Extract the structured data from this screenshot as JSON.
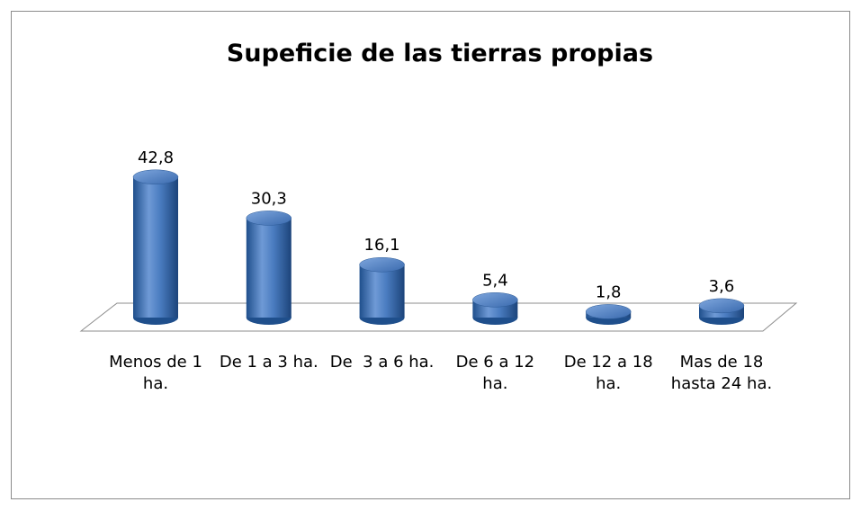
{
  "chart_data": {
    "type": "bar3d",
    "title": "Supeficie de las tierras propias",
    "categories": [
      "Menos de 1 ha.",
      "De 1 a 3 ha.",
      "De  3 a 6 ha.",
      "De 6 a 12 ha.",
      "De 12 a 18 ha.",
      "Mas de 18 hasta 24 ha."
    ],
    "values": [
      42.8,
      30.3,
      16.1,
      5.4,
      1.8,
      3.6
    ],
    "value_labels": [
      "42,8",
      "30,3",
      "16,1",
      "5,4",
      "1,8",
      "3,6"
    ],
    "color": "#4f81bd"
  }
}
